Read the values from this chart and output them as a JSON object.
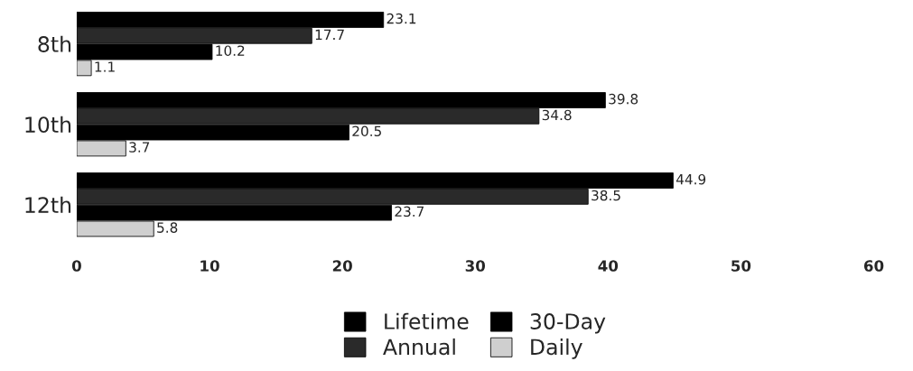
{
  "chart_data": {
    "type": "bar",
    "orientation": "horizontal",
    "categories": [
      "8th",
      "10th",
      "12th"
    ],
    "series": [
      {
        "name": "Lifetime",
        "color": "#000000",
        "values": [
          23.1,
          39.8,
          44.9
        ]
      },
      {
        "name": "Annual",
        "color": "#2a2a2a",
        "values": [
          17.7,
          34.8,
          38.5
        ]
      },
      {
        "name": "30-Day",
        "color": "#000000",
        "values": [
          10.2,
          20.5,
          23.7
        ]
      },
      {
        "name": "Daily",
        "color": "#cfcfcf",
        "values": [
          1.1,
          3.7,
          5.8
        ]
      }
    ],
    "xlim": [
      0,
      60
    ],
    "xticks": [
      0,
      10,
      20,
      30,
      40,
      50,
      60
    ],
    "data_labels": true,
    "legend": "bottom",
    "grid": false
  }
}
